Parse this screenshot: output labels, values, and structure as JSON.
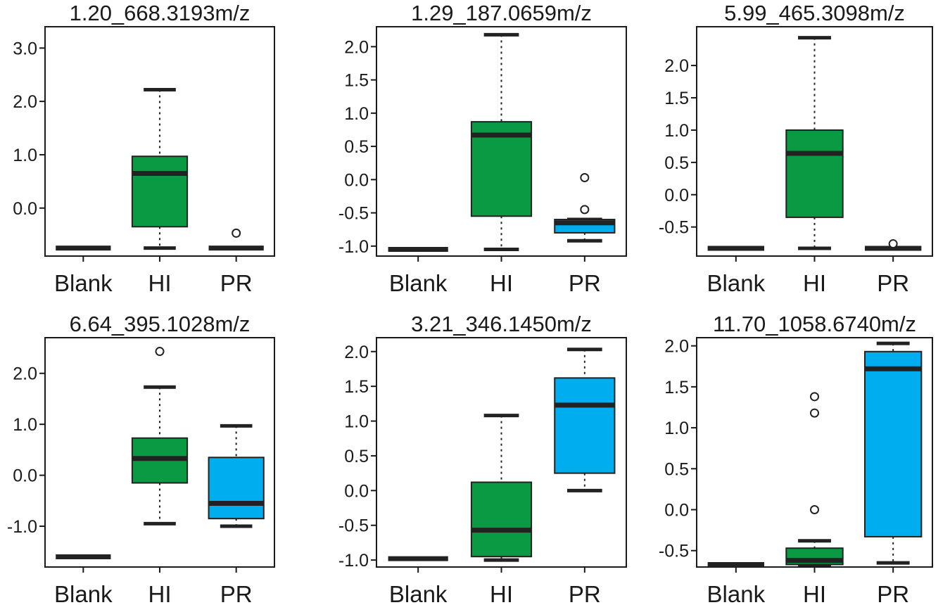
{
  "colors": {
    "hi": "#0a9a44",
    "pr": "#00adef",
    "line": "#222222",
    "frame": "#1a1a1a"
  },
  "chart_data": [
    {
      "type": "box",
      "title": "1.20_668.3193m/z",
      "categories": [
        "Blank",
        "HI",
        "PR"
      ],
      "yticks": [
        {
          "v": 3.0,
          "label": "3.0"
        },
        {
          "v": 2.0,
          "label": "2.0"
        },
        {
          "v": 1.0,
          "label": "1.0"
        },
        {
          "v": 0.0,
          "label": "0.0"
        }
      ],
      "ylim": [
        -0.9,
        3.4
      ],
      "boxes": [
        {
          "category": "Blank",
          "color": "none",
          "min": -0.75,
          "q1": -0.75,
          "median": -0.75,
          "q3": -0.75,
          "max": -0.75,
          "outliers": []
        },
        {
          "category": "HI",
          "color": "hi",
          "min": -0.75,
          "q1": -0.35,
          "median": 0.65,
          "q3": 0.97,
          "max": 2.22,
          "outliers": []
        },
        {
          "category": "PR",
          "color": "none",
          "min": -0.75,
          "q1": -0.75,
          "median": -0.75,
          "q3": -0.75,
          "max": -0.75,
          "outliers": [
            -0.47
          ]
        }
      ]
    },
    {
      "type": "box",
      "title": "1.29_187.0659m/z",
      "categories": [
        "Blank",
        "HI",
        "PR"
      ],
      "yticks": [
        {
          "v": 2.0,
          "label": "2.0"
        },
        {
          "v": 1.5,
          "label": "1.5"
        },
        {
          "v": 1.0,
          "label": "1.0"
        },
        {
          "v": 0.5,
          "label": "0.5"
        },
        {
          "v": 0.0,
          "label": "0.0"
        },
        {
          "v": -0.5,
          "label": "-0.5"
        },
        {
          "v": -1.0,
          "label": "-1.0"
        }
      ],
      "ylim": [
        -1.15,
        2.3
      ],
      "boxes": [
        {
          "category": "Blank",
          "color": "none",
          "min": -1.05,
          "q1": -1.05,
          "median": -1.05,
          "q3": -1.05,
          "max": -1.05,
          "outliers": []
        },
        {
          "category": "HI",
          "color": "hi",
          "min": -1.05,
          "q1": -0.55,
          "median": 0.67,
          "q3": 0.87,
          "max": 2.18,
          "outliers": []
        },
        {
          "category": "PR",
          "color": "pr",
          "min": -0.92,
          "q1": -0.8,
          "median": -0.65,
          "q3": -0.6,
          "max": -0.6,
          "outliers": [
            0.03,
            -0.45
          ]
        }
      ]
    },
    {
      "type": "box",
      "title": "5.99_465.3098m/z",
      "categories": [
        "Blank",
        "HI",
        "PR"
      ],
      "yticks": [
        {
          "v": 2.0,
          "label": "2.0"
        },
        {
          "v": 1.5,
          "label": "1.5"
        },
        {
          "v": 1.0,
          "label": "1.0"
        },
        {
          "v": 0.5,
          "label": "0.5"
        },
        {
          "v": 0.0,
          "label": "0.0"
        },
        {
          "v": -0.5,
          "label": "-0.5"
        }
      ],
      "ylim": [
        -0.95,
        2.6
      ],
      "boxes": [
        {
          "category": "Blank",
          "color": "none",
          "min": -0.83,
          "q1": -0.83,
          "median": -0.83,
          "q3": -0.83,
          "max": -0.83,
          "outliers": []
        },
        {
          "category": "HI",
          "color": "hi",
          "min": -0.83,
          "q1": -0.35,
          "median": 0.64,
          "q3": 1.0,
          "max": 2.43,
          "outliers": []
        },
        {
          "category": "PR",
          "color": "none",
          "min": -0.83,
          "q1": -0.83,
          "median": -0.83,
          "q3": -0.83,
          "max": -0.83,
          "outliers": [
            -0.76
          ]
        }
      ]
    },
    {
      "type": "box",
      "title": "6.64_395.1028m/z",
      "categories": [
        "Blank",
        "HI",
        "PR"
      ],
      "yticks": [
        {
          "v": 2.0,
          "label": "2.0"
        },
        {
          "v": 1.0,
          "label": "1.0"
        },
        {
          "v": 0.0,
          "label": "0.0"
        },
        {
          "v": -1.0,
          "label": "-1.0"
        }
      ],
      "ylim": [
        -1.8,
        2.7
      ],
      "boxes": [
        {
          "category": "Blank",
          "color": "none",
          "min": -1.6,
          "q1": -1.6,
          "median": -1.6,
          "q3": -1.6,
          "max": -1.6,
          "outliers": []
        },
        {
          "category": "HI",
          "color": "hi",
          "min": -0.95,
          "q1": -0.15,
          "median": 0.33,
          "q3": 0.73,
          "max": 1.73,
          "outliers": [
            2.43
          ]
        },
        {
          "category": "PR",
          "color": "pr",
          "min": -1.0,
          "q1": -0.85,
          "median": -0.55,
          "q3": 0.35,
          "max": 0.97,
          "outliers": []
        }
      ]
    },
    {
      "type": "box",
      "title": "3.21_346.1450m/z",
      "categories": [
        "Blank",
        "HI",
        "PR"
      ],
      "yticks": [
        {
          "v": 2.0,
          "label": "2.0"
        },
        {
          "v": 1.5,
          "label": "1.5"
        },
        {
          "v": 1.0,
          "label": "1.0"
        },
        {
          "v": 0.5,
          "label": "0.5"
        },
        {
          "v": 0.0,
          "label": "0.0"
        },
        {
          "v": -0.5,
          "label": "-0.5"
        },
        {
          "v": -1.0,
          "label": "-1.0"
        }
      ],
      "ylim": [
        -1.1,
        2.2
      ],
      "boxes": [
        {
          "category": "Blank",
          "color": "none",
          "min": -0.98,
          "q1": -0.98,
          "median": -0.98,
          "q3": -0.98,
          "max": -0.98,
          "outliers": []
        },
        {
          "category": "HI",
          "color": "hi",
          "min": -1.0,
          "q1": -0.95,
          "median": -0.57,
          "q3": 0.12,
          "max": 1.08,
          "outliers": []
        },
        {
          "category": "PR",
          "color": "pr",
          "min": 0.0,
          "q1": 0.25,
          "median": 1.23,
          "q3": 1.62,
          "max": 2.03,
          "outliers": []
        }
      ]
    },
    {
      "type": "box",
      "title": "11.70_1058.6740m/z",
      "categories": [
        "Blank",
        "HI",
        "PR"
      ],
      "yticks": [
        {
          "v": 2.0,
          "label": "2.0"
        },
        {
          "v": 1.5,
          "label": "1.5"
        },
        {
          "v": 1.0,
          "label": "1.0"
        },
        {
          "v": 0.5,
          "label": "0.5"
        },
        {
          "v": 0.0,
          "label": "0.0"
        },
        {
          "v": -0.5,
          "label": "-0.5"
        }
      ],
      "ylim": [
        -0.7,
        2.1
      ],
      "boxes": [
        {
          "category": "Blank",
          "color": "none",
          "min": -0.67,
          "q1": -0.67,
          "median": -0.67,
          "q3": -0.67,
          "max": -0.67,
          "outliers": []
        },
        {
          "category": "HI",
          "color": "hi",
          "min": -0.67,
          "q1": -0.67,
          "median": -0.62,
          "q3": -0.47,
          "max": -0.38,
          "outliers": [
            1.38,
            1.18,
            0.0
          ]
        },
        {
          "category": "PR",
          "color": "pr",
          "min": -0.65,
          "q1": -0.33,
          "median": 1.72,
          "q3": 1.93,
          "max": 2.03,
          "outliers": []
        }
      ]
    }
  ]
}
